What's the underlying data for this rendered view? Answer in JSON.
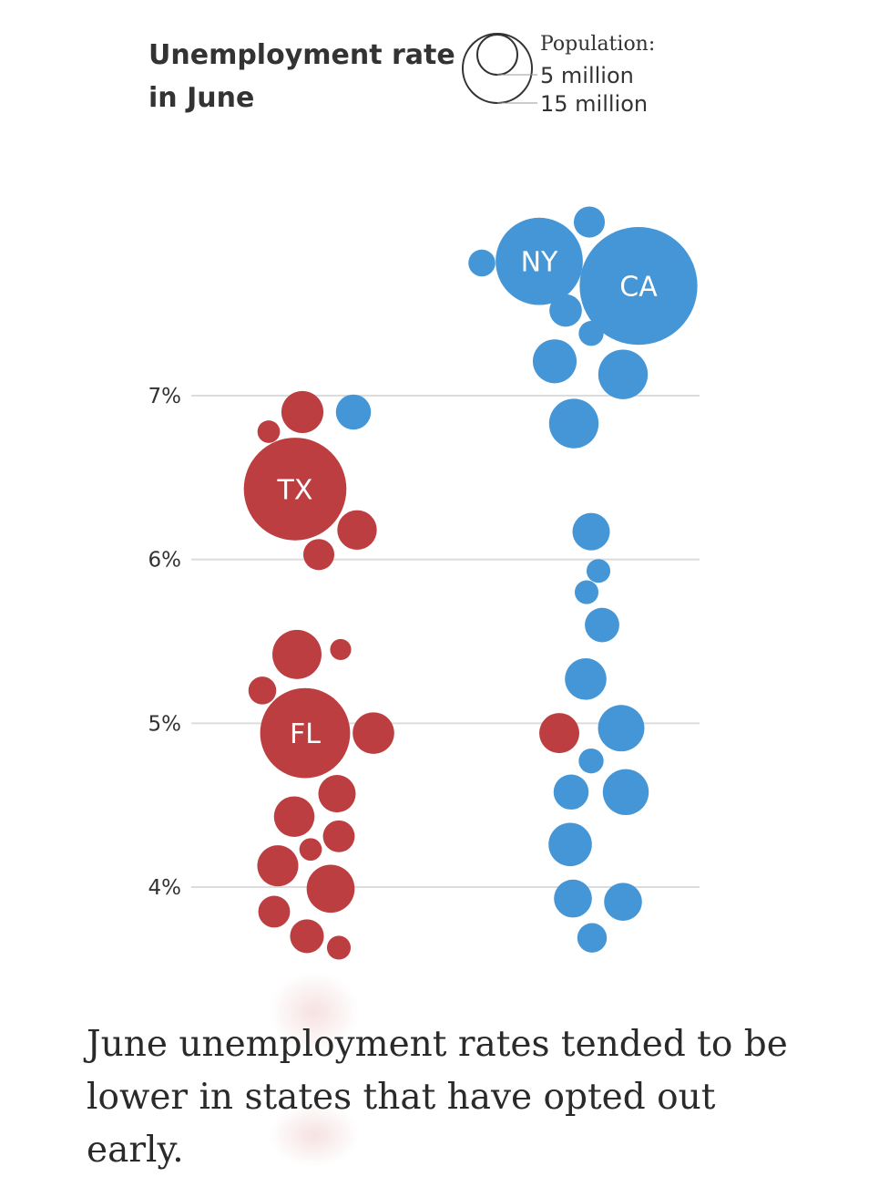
{
  "chart_data": {
    "type": "scatter",
    "subtype": "beeswarm bubble chart",
    "title": [
      "Unemployment rate",
      "in June"
    ],
    "y_axis": {
      "ticks": [
        4,
        5,
        6,
        7
      ],
      "tick_labels": [
        "4%",
        "5%",
        "6%",
        "7%"
      ],
      "range": [
        3.5,
        8.3
      ]
    },
    "size_legend": {
      "heading": "Population:",
      "entries": [
        {
          "label": "5 million",
          "population_m": 5
        },
        {
          "label": "15 million",
          "population_m": 15
        }
      ]
    },
    "colors": {
      "red": "#bd3e40",
      "blue": "#4596d6"
    },
    "columns": [
      {
        "name": "left",
        "bubbles": [
          {
            "rate": 6.9,
            "pop_m": 3.2,
            "color": "red",
            "label": ""
          },
          {
            "rate": 6.9,
            "pop_m": 1.9,
            "color": "blue",
            "label": ""
          },
          {
            "rate": 6.78,
            "pop_m": 0.4,
            "color": "red",
            "label": ""
          },
          {
            "rate": 6.43,
            "pop_m": 29,
            "color": "red",
            "label": "TX"
          },
          {
            "rate": 6.18,
            "pop_m": 2.7,
            "color": "red",
            "label": ""
          },
          {
            "rate": 6.03,
            "pop_m": 1.3,
            "color": "red",
            "label": ""
          },
          {
            "rate": 5.42,
            "pop_m": 4.9,
            "color": "red",
            "label": ""
          },
          {
            "rate": 5.45,
            "pop_m": 0.3,
            "color": "red",
            "label": ""
          },
          {
            "rate": 5.2,
            "pop_m": 0.9,
            "color": "red",
            "label": ""
          },
          {
            "rate": 4.94,
            "pop_m": 21.5,
            "color": "red",
            "label": "FL"
          },
          {
            "rate": 4.94,
            "pop_m": 3.1,
            "color": "red",
            "label": ""
          },
          {
            "rate": 4.57,
            "pop_m": 2.3,
            "color": "red",
            "label": ""
          },
          {
            "rate": 4.43,
            "pop_m": 2.9,
            "color": "red",
            "label": ""
          },
          {
            "rate": 4.31,
            "pop_m": 1.4,
            "color": "red",
            "label": ""
          },
          {
            "rate": 4.23,
            "pop_m": 0.4,
            "color": "red",
            "label": ""
          },
          {
            "rate": 4.13,
            "pop_m": 3.0,
            "color": "red",
            "label": ""
          },
          {
            "rate": 3.99,
            "pop_m": 4.6,
            "color": "red",
            "label": ""
          },
          {
            "rate": 3.85,
            "pop_m": 1.4,
            "color": "red",
            "label": ""
          },
          {
            "rate": 3.7,
            "pop_m": 1.7,
            "color": "red",
            "label": ""
          },
          {
            "rate": 3.63,
            "pop_m": 0.5,
            "color": "red",
            "label": ""
          }
        ]
      },
      {
        "name": "right",
        "bubbles": [
          {
            "rate": 8.06,
            "pop_m": 1.3,
            "color": "blue",
            "label": ""
          },
          {
            "rate": 7.81,
            "pop_m": 0.8,
            "color": "blue",
            "label": ""
          },
          {
            "rate": 7.82,
            "pop_m": 20,
            "color": "blue",
            "label": "NY"
          },
          {
            "rate": 7.67,
            "pop_m": 39.5,
            "color": "blue",
            "label": "CA"
          },
          {
            "rate": 7.52,
            "pop_m": 1.5,
            "color": "blue",
            "label": ""
          },
          {
            "rate": 7.38,
            "pop_m": 0.6,
            "color": "blue",
            "label": ""
          },
          {
            "rate": 7.21,
            "pop_m": 3.6,
            "color": "blue",
            "label": ""
          },
          {
            "rate": 7.13,
            "pop_m": 5.0,
            "color": "blue",
            "label": ""
          },
          {
            "rate": 6.83,
            "pop_m": 5.0,
            "color": "blue",
            "label": ""
          },
          {
            "rate": 6.17,
            "pop_m": 2.3,
            "color": "blue",
            "label": ""
          },
          {
            "rate": 5.93,
            "pop_m": 0.5,
            "color": "blue",
            "label": ""
          },
          {
            "rate": 5.8,
            "pop_m": 0.5,
            "color": "blue",
            "label": ""
          },
          {
            "rate": 5.6,
            "pop_m": 1.8,
            "color": "blue",
            "label": ""
          },
          {
            "rate": 5.27,
            "pop_m": 3.1,
            "color": "blue",
            "label": ""
          },
          {
            "rate": 4.94,
            "pop_m": 2.8,
            "color": "red",
            "label": ""
          },
          {
            "rate": 4.97,
            "pop_m": 4.2,
            "color": "blue",
            "label": ""
          },
          {
            "rate": 4.77,
            "pop_m": 0.6,
            "color": "blue",
            "label": ""
          },
          {
            "rate": 4.58,
            "pop_m": 1.9,
            "color": "blue",
            "label": ""
          },
          {
            "rate": 4.58,
            "pop_m": 4.1,
            "color": "blue",
            "label": ""
          },
          {
            "rate": 4.26,
            "pop_m": 3.5,
            "color": "blue",
            "label": ""
          },
          {
            "rate": 3.93,
            "pop_m": 2.4,
            "color": "blue",
            "label": ""
          },
          {
            "rate": 3.91,
            "pop_m": 2.4,
            "color": "blue",
            "label": ""
          },
          {
            "rate": 3.69,
            "pop_m": 1.1,
            "color": "blue",
            "label": ""
          }
        ]
      }
    ]
  },
  "caption": "June unemployment rates tended to be lower in states that have opted out early."
}
